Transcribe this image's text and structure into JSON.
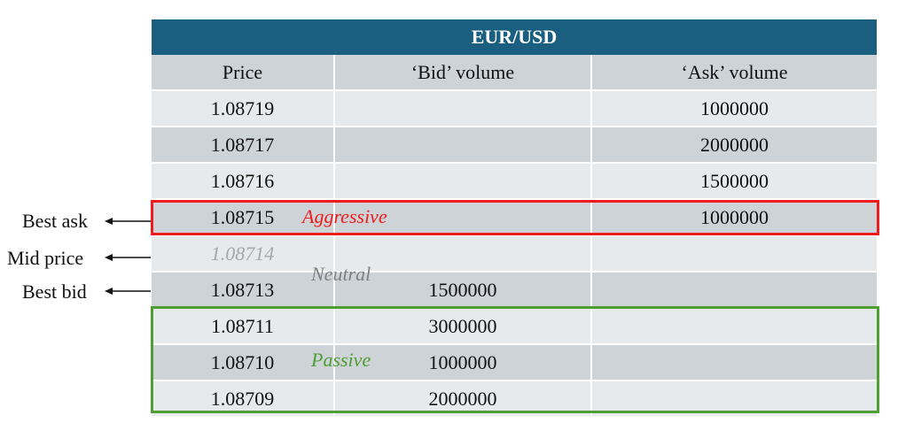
{
  "title": "EUR/USD",
  "headers": [
    "Price",
    "‘Bid’ volume",
    "‘Ask’ volume"
  ],
  "rows": [
    {
      "price": "1.08719",
      "bid": "",
      "ask": "1000000"
    },
    {
      "price": "1.08717",
      "bid": "",
      "ask": "2000000"
    },
    {
      "price": "1.08716",
      "bid": "",
      "ask": "1500000"
    },
    {
      "price": "1.08715",
      "bid": "",
      "ask": "1000000"
    },
    {
      "price": "1.08714",
      "bid": "",
      "ask": ""
    },
    {
      "price": "1.08713",
      "bid": "1500000",
      "ask": ""
    },
    {
      "price": "1.08711",
      "bid": "3000000",
      "ask": ""
    },
    {
      "price": "1.08710",
      "bid": "1000000",
      "ask": ""
    },
    {
      "price": "1.08709",
      "bid": "2000000",
      "ask": ""
    }
  ],
  "tags": {
    "aggressive": "Aggressive",
    "neutral": "Neutral",
    "passive": "Passive"
  },
  "side_labels": {
    "best_ask": "Best ask",
    "mid_price": "Mid price",
    "best_bid": "Best bid"
  },
  "colors": {
    "header": "#1a5f80",
    "aggressive": "#ee1c1c",
    "neutral": "#7f7f7f",
    "passive": "#4e9e31"
  }
}
